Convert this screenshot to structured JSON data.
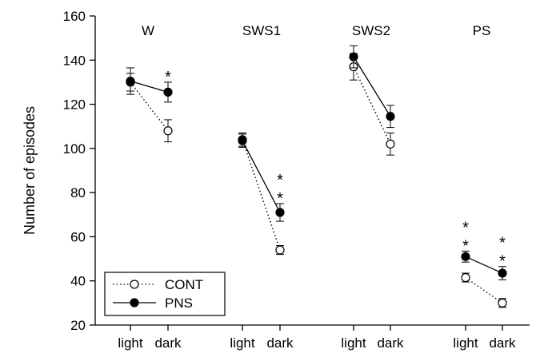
{
  "chart_data": {
    "type": "line",
    "ylabel": "Number of episodes",
    "ylim": [
      20,
      160
    ],
    "yticks": [
      20,
      40,
      60,
      80,
      100,
      120,
      140,
      160
    ],
    "grid": false,
    "legend_position": "bottom-left",
    "panels": [
      {
        "name": "W",
        "categories": [
          "light",
          "dark"
        ],
        "series": [
          {
            "name": "CONT",
            "values": [
              130,
              108
            ],
            "errors": [
              4,
              5
            ],
            "line": "dotted",
            "marker": "open-circle"
          },
          {
            "name": "PNS",
            "values": [
              130.5,
              125.5
            ],
            "errors": [
              6,
              4.5
            ],
            "line": "solid",
            "marker": "filled-circle"
          }
        ],
        "significance": [
          "",
          "*"
        ]
      },
      {
        "name": "SWS1",
        "categories": [
          "light",
          "dark"
        ],
        "series": [
          {
            "name": "CONT",
            "values": [
              104,
              54
            ],
            "errors": [
              3,
              2
            ],
            "line": "dotted",
            "marker": "open-circle"
          },
          {
            "name": "PNS",
            "values": [
              103.5,
              71
            ],
            "errors": [
              3,
              4
            ],
            "line": "solid",
            "marker": "filled-circle"
          }
        ],
        "significance": [
          "",
          "**"
        ]
      },
      {
        "name": "SWS2",
        "categories": [
          "light",
          "dark"
        ],
        "series": [
          {
            "name": "CONT",
            "values": [
              137,
              102
            ],
            "errors": [
              6,
              5
            ],
            "line": "dotted",
            "marker": "open-circle"
          },
          {
            "name": "PNS",
            "values": [
              141.5,
              114.5
            ],
            "errors": [
              5,
              5
            ],
            "line": "solid",
            "marker": "filled-circle"
          }
        ],
        "significance": [
          "",
          ""
        ]
      },
      {
        "name": "PS",
        "categories": [
          "light",
          "dark"
        ],
        "series": [
          {
            "name": "CONT",
            "values": [
              41.5,
              30
            ],
            "errors": [
              2,
              2
            ],
            "line": "dotted",
            "marker": "open-circle"
          },
          {
            "name": "PNS",
            "values": [
              51,
              43.5
            ],
            "errors": [
              2.5,
              3
            ],
            "line": "solid",
            "marker": "filled-circle"
          }
        ],
        "significance": [
          "**",
          "**"
        ]
      }
    ],
    "legend": [
      {
        "label": "CONT",
        "line": "dotted",
        "marker": "open-circle"
      },
      {
        "label": "PNS",
        "line": "solid",
        "marker": "filled-circle"
      }
    ]
  }
}
